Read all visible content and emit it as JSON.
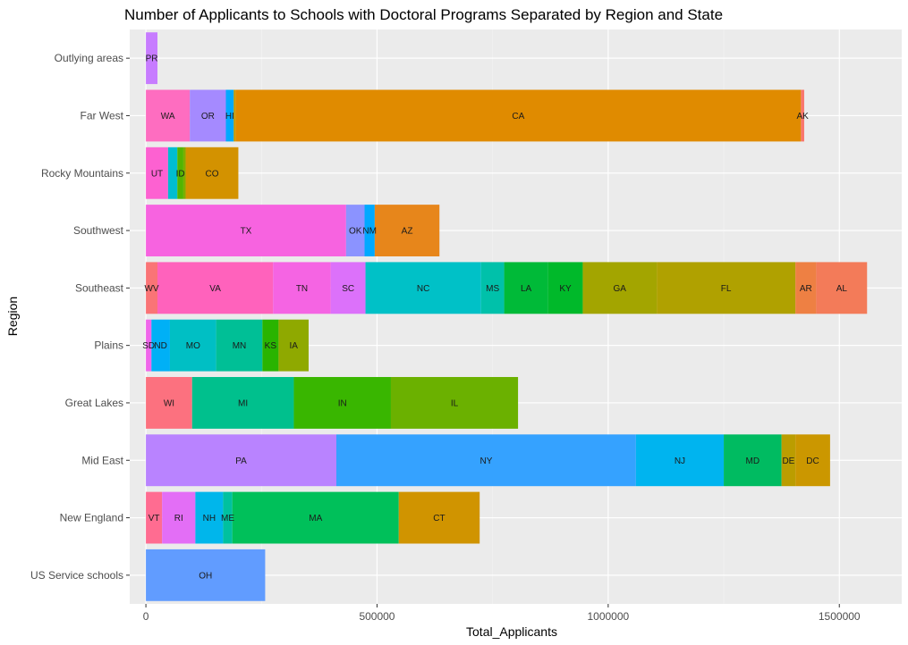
{
  "chart_data": {
    "type": "bar",
    "orientation": "horizontal",
    "stacked": true,
    "title": "Number of Applicants to Schools with Doctoral Programs Separated by Region and State",
    "xlabel": "Total_Applicants",
    "ylabel": "Region",
    "xlim": [
      -35000,
      1635000
    ],
    "xticks": [
      0,
      500000,
      1000000,
      1500000
    ],
    "xtick_labels": [
      "0",
      "500000",
      "1000000",
      "1500000"
    ],
    "grid": true,
    "legend": "none",
    "categories": [
      "Outlying areas",
      "Far West",
      "Rocky Mountains",
      "Southwest",
      "Southeast",
      "Plains",
      "Great Lakes",
      "Mid East",
      "New England",
      "US Service schools"
    ],
    "bars": [
      {
        "region": "Outlying areas",
        "segments": [
          {
            "state": "PR",
            "value": 25000,
            "color": "#c77cff"
          }
        ]
      },
      {
        "region": "Far West",
        "segments": [
          {
            "state": "WA",
            "value": 95000,
            "color": "#fe6dc0"
          },
          {
            "state": "OR",
            "value": 78000,
            "color": "#a58aff"
          },
          {
            "state": "HI",
            "value": 17000,
            "color": "#00a9ff"
          },
          {
            "state": "",
            "value": 4000,
            "color": "#c49a00"
          },
          {
            "state": "CA",
            "value": 1223000,
            "color": "#e08b00"
          },
          {
            "state": "AK",
            "value": 7000,
            "color": "#f8766d"
          }
        ]
      },
      {
        "region": "Rocky Mountains",
        "segments": [
          {
            "state": "UT",
            "value": 48000,
            "color": "#fd61d1"
          },
          {
            "state": "",
            "value": 20000,
            "color": "#00bdd0"
          },
          {
            "state": "ID",
            "value": 13000,
            "color": "#53b400"
          },
          {
            "state": "",
            "value": 5000,
            "color": "#7cae00"
          },
          {
            "state": "CO",
            "value": 114000,
            "color": "#d39200"
          }
        ]
      },
      {
        "region": "Southwest",
        "segments": [
          {
            "state": "TX",
            "value": 433000,
            "color": "#f763e0"
          },
          {
            "state": "OK",
            "value": 40000,
            "color": "#8b93ff"
          },
          {
            "state": "NM",
            "value": 22000,
            "color": "#00a9ff"
          },
          {
            "state": "AZ",
            "value": 140000,
            "color": "#e7861b"
          }
        ]
      },
      {
        "region": "Southeast",
        "segments": [
          {
            "state": "WV",
            "value": 25000,
            "color": "#fa7476"
          },
          {
            "state": "VA",
            "value": 250000,
            "color": "#ff62bc"
          },
          {
            "state": "TN",
            "value": 125000,
            "color": "#f564e3"
          },
          {
            "state": "SC",
            "value": 75000,
            "color": "#dc71fa"
          },
          {
            "state": "NC",
            "value": 250000,
            "color": "#00c1c7"
          },
          {
            "state": "MS",
            "value": 50000,
            "color": "#00c1aa"
          },
          {
            "state": "LA",
            "value": 95000,
            "color": "#00ba38"
          },
          {
            "state": "KY",
            "value": 75000,
            "color": "#00b92a"
          },
          {
            "state": "GA",
            "value": 160000,
            "color": "#a3a500"
          },
          {
            "state": "FL",
            "value": 300000,
            "color": "#b0a100"
          },
          {
            "state": "AR",
            "value": 45000,
            "color": "#ee8043"
          },
          {
            "state": "AL",
            "value": 110000,
            "color": "#f37b59"
          }
        ]
      },
      {
        "region": "Plains",
        "segments": [
          {
            "state": "SD",
            "value": 12000,
            "color": "#f066ea"
          },
          {
            "state": "ND",
            "value": 40000,
            "color": "#00b0f6"
          },
          {
            "state": "MO",
            "value": 100000,
            "color": "#00bfc4"
          },
          {
            "state": "MN",
            "value": 100000,
            "color": "#00bf96"
          },
          {
            "state": "KS",
            "value": 35000,
            "color": "#29b400"
          },
          {
            "state": "IA",
            "value": 65000,
            "color": "#8fa900"
          }
        ]
      },
      {
        "region": "Great Lakes",
        "segments": [
          {
            "state": "WI",
            "value": 100000,
            "color": "#fc717f"
          },
          {
            "state": "MI",
            "value": 220000,
            "color": "#00c08d"
          },
          {
            "state": "IN",
            "value": 210000,
            "color": "#39b600"
          },
          {
            "state": "IL",
            "value": 275000,
            "color": "#6bb100"
          }
        ]
      },
      {
        "region": "Mid East",
        "segments": [
          {
            "state": "PA",
            "value": 412000,
            "color": "#b983ff"
          },
          {
            "state": "NY",
            "value": 648000,
            "color": "#35a2ff"
          },
          {
            "state": "NJ",
            "value": 190000,
            "color": "#00b4ef"
          },
          {
            "state": "MD",
            "value": 125000,
            "color": "#00bb61"
          },
          {
            "state": "DE",
            "value": 30000,
            "color": "#bb9d00"
          },
          {
            "state": "DC",
            "value": 75000,
            "color": "#cb9700"
          }
        ]
      },
      {
        "region": "New England",
        "segments": [
          {
            "state": "VT",
            "value": 35000,
            "color": "#ff6c91"
          },
          {
            "state": "RI",
            "value": 72000,
            "color": "#e36ef6"
          },
          {
            "state": "NH",
            "value": 60000,
            "color": "#00b6eb"
          },
          {
            "state": "ME",
            "value": 20000,
            "color": "#00c19f"
          },
          {
            "state": "MA",
            "value": 360000,
            "color": "#00c05a"
          },
          {
            "state": "CT",
            "value": 175000,
            "color": "#d09400"
          }
        ]
      },
      {
        "region": "US Service schools",
        "segments": [
          {
            "state": "OH",
            "value": 258000,
            "color": "#619cff"
          }
        ]
      }
    ]
  }
}
